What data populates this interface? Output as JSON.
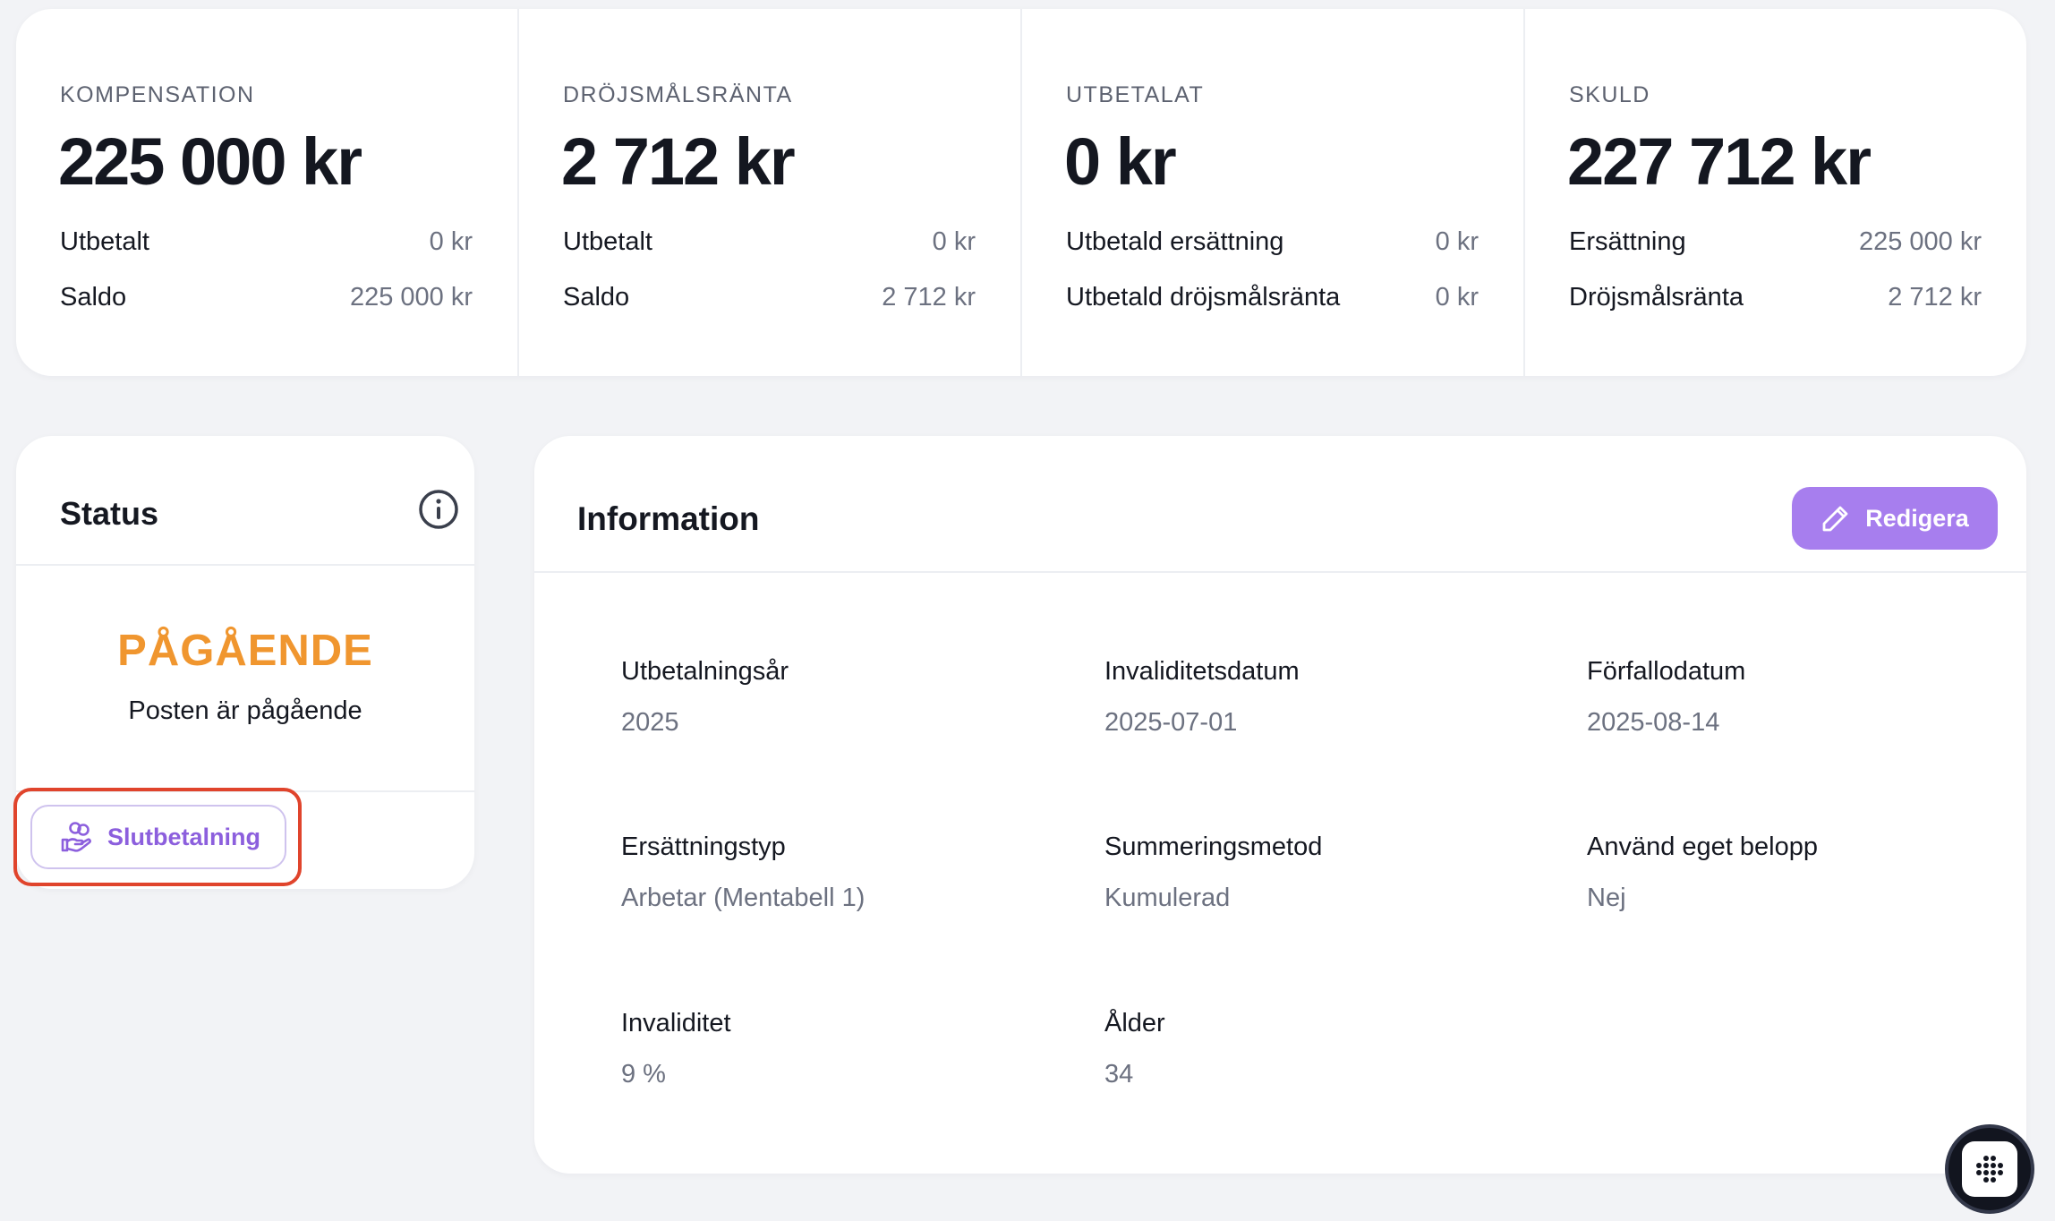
{
  "summary": [
    {
      "label": "KOMPENSATION",
      "value": "225 000 kr",
      "rows": [
        {
          "label": "Utbetalt",
          "value": "0 kr"
        },
        {
          "label": "Saldo",
          "value": "225 000 kr"
        }
      ]
    },
    {
      "label": "DRÖJSMÅLSRÄNTA",
      "value": "2 712 kr",
      "rows": [
        {
          "label": "Utbetalt",
          "value": "0 kr"
        },
        {
          "label": "Saldo",
          "value": "2 712 kr"
        }
      ]
    },
    {
      "label": "UTBETALAT",
      "value": "0 kr",
      "rows": [
        {
          "label": "Utbetald ersättning",
          "value": "0 kr"
        },
        {
          "label": "Utbetald dröjsmålsränta",
          "value": "0 kr"
        }
      ]
    },
    {
      "label": "SKULD",
      "value": "227 712 kr",
      "rows": [
        {
          "label": "Ersättning",
          "value": "225 000 kr"
        },
        {
          "label": "Dröjsmålsränta",
          "value": "2 712 kr"
        }
      ]
    }
  ],
  "status": {
    "title": "Status",
    "state": "PÅGÅENDE",
    "description": "Posten är pågående",
    "final_payment_label": "Slutbetalning",
    "icon": "info-icon",
    "state_color": "#f0962f"
  },
  "information": {
    "title": "Information",
    "edit_label": "Redigera",
    "accent": "#a77eee",
    "fields": [
      {
        "label": "Utbetalningsår",
        "value": "2025"
      },
      {
        "label": "Invaliditetsdatum",
        "value": "2025-07-01"
      },
      {
        "label": "Förfallodatum",
        "value": "2025-08-14"
      },
      {
        "label": "Ersättningstyp",
        "value": "Arbetar (Mentabell 1)"
      },
      {
        "label": "Summeringsmetod",
        "value": "Kumulerad"
      },
      {
        "label": "Använd eget belopp",
        "value": "Nej"
      },
      {
        "label": "Invaliditet",
        "value": "9 %"
      },
      {
        "label": "Ålder",
        "value": "34"
      }
    ]
  },
  "widget": {
    "icon": "dots-grid-icon"
  }
}
